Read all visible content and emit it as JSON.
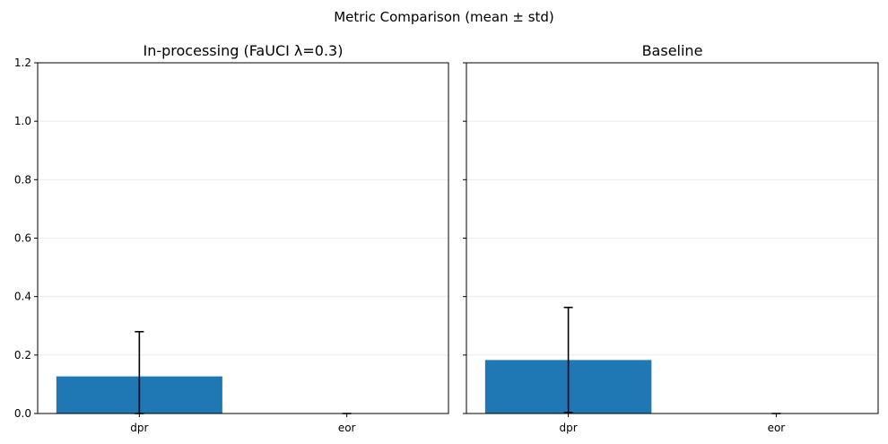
{
  "figure": {
    "suptitle": "Metric Comparison (mean ± std)"
  },
  "colors": {
    "bar": "#1f77b4",
    "error_bar": "#000000"
  },
  "chart_data": [
    {
      "type": "bar",
      "title": "In-processing (FaUCI λ=0.3)",
      "categories": [
        "dpr",
        "eor"
      ],
      "values": [
        0.127,
        0.0
      ],
      "errors": [
        0.153,
        0.0
      ],
      "xlabel": "",
      "ylabel": "",
      "ylim": [
        0,
        1.2
      ],
      "yticks": [
        "0.0",
        "0.2",
        "0.4",
        "0.6",
        "0.8",
        "1.0",
        "1.2"
      ],
      "grid": "y",
      "legend": "none"
    },
    {
      "type": "bar",
      "title": "Baseline",
      "categories": [
        "dpr",
        "eor"
      ],
      "values": [
        0.183,
        0.0
      ],
      "errors": [
        0.18,
        0.0
      ],
      "xlabel": "",
      "ylabel": "",
      "ylim": [
        0,
        1.2
      ],
      "yticks": [],
      "grid": "y",
      "legend": "none"
    }
  ]
}
